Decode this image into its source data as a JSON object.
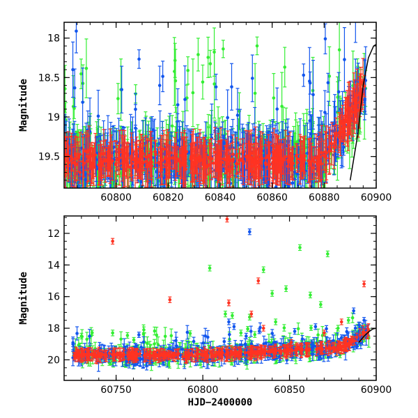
{
  "chart_data": [
    {
      "type": "scatter",
      "title": "",
      "xlabel": "",
      "ylabel": "Magnitude",
      "xlim": [
        60780,
        60900
      ],
      "ylim": [
        19.9,
        17.8
      ],
      "y_inverted": true,
      "x_ticks": [
        60800,
        60820,
        60840,
        60860,
        60880,
        60900
      ],
      "y_ticks": [
        18,
        18.5,
        19,
        19.5
      ],
      "grid": false,
      "legend": "none",
      "series": [
        {
          "color": "#33ee33",
          "approx_mag_range": [
            17.8,
            19.9
          ],
          "error_bars": true
        },
        {
          "color": "#1155ee",
          "approx_mag_range": [
            17.8,
            19.9
          ],
          "error_bars": true
        },
        {
          "color": "#ff3322",
          "approx_mag_range": [
            18.0,
            19.9
          ],
          "error_bars": true
        }
      ],
      "model_curve": {
        "color": "#000000",
        "points": [
          [
            60890,
            19.8
          ],
          [
            60893,
            19.2
          ],
          [
            60895,
            18.6
          ],
          [
            60897,
            18.25
          ],
          [
            60899,
            18.1
          ],
          [
            60900,
            18.08
          ]
        ]
      }
    },
    {
      "type": "scatter",
      "title": "",
      "xlabel": "HJD−2400000",
      "ylabel": "Magnitude",
      "xlim": [
        60720,
        60900
      ],
      "ylim": [
        21.3,
        10.9
      ],
      "y_inverted": true,
      "x_ticks": [
        60750,
        60800,
        60850,
        60900
      ],
      "y_ticks": [
        12,
        14,
        16,
        18,
        20
      ],
      "grid": false,
      "legend": "none",
      "series": [
        {
          "color": "#33ee33",
          "outliers": [
            [
              60813,
              17.1
            ],
            [
              60817,
              17.2
            ],
            [
              60822,
              18.3
            ],
            [
              60827,
              17.3
            ],
            [
              60830,
              18.4
            ],
            [
              60835,
              14.3
            ],
            [
              60840,
              15.8
            ],
            [
              60842,
              17.6
            ],
            [
              60848,
              15.5
            ],
            [
              60856,
              12.9
            ],
            [
              60862,
              15.9
            ],
            [
              60868,
              16.5
            ],
            [
              60872,
              13.3
            ],
            [
              60878,
              18.0
            ],
            [
              60884,
              17.5
            ],
            [
              60804,
              14.2
            ],
            [
              60766,
              18.1
            ],
            [
              60730,
              18.5
            ],
            [
              60748,
              18.3
            ]
          ]
        },
        {
          "color": "#1155ee",
          "outliers": [
            [
              60827,
              11.9
            ],
            [
              60815,
              17.6
            ],
            [
              60818,
              17.9
            ],
            [
              60825,
              18.5
            ],
            [
              60853,
              18.2
            ],
            [
              60865,
              17.9
            ],
            [
              60880,
              18.6
            ],
            [
              60887,
              16.9
            ],
            [
              60890,
              17.8
            ],
            [
              60893,
              17.5
            ],
            [
              60888,
              18.0
            ]
          ]
        },
        {
          "color": "#ff3322",
          "outliers": [
            [
              60748,
              12.5
            ],
            [
              60781,
              16.2
            ],
            [
              60814,
              11.1
            ],
            [
              60815,
              16.4
            ],
            [
              60828,
              17.1
            ],
            [
              60832,
              15.0
            ],
            [
              60835,
              18.0
            ],
            [
              60851,
              18.9
            ],
            [
              60855,
              19.2
            ],
            [
              60870,
              18.3
            ],
            [
              60880,
              17.6
            ],
            [
              60893,
              15.2
            ]
          ]
        }
      ],
      "model_curve": {
        "color": "#000000",
        "points": [
          [
            60890,
            18.9
          ],
          [
            60893,
            18.5
          ],
          [
            60896,
            18.2
          ],
          [
            60898,
            18.05
          ],
          [
            60900,
            18.0
          ]
        ]
      }
    }
  ]
}
